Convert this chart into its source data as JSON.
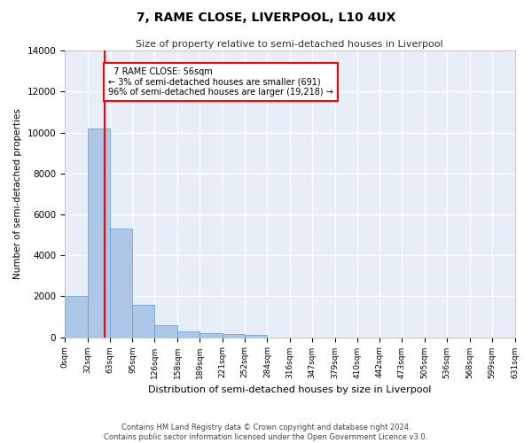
{
  "title": "7, RAME CLOSE, LIVERPOOL, L10 4UX",
  "subtitle": "Size of property relative to semi-detached houses in Liverpool",
  "xlabel": "Distribution of semi-detached houses by size in Liverpool",
  "ylabel": "Number of semi-detached properties",
  "footer_line1": "Contains HM Land Registry data © Crown copyright and database right 2024.",
  "footer_line2": "Contains public sector information licensed under the Open Government Licence v3.0.",
  "property_size": 56,
  "property_label": "7 RAME CLOSE: 56sqm",
  "pct_smaller": 3,
  "count_smaller": 691,
  "pct_larger": 96,
  "count_larger": 19218,
  "bar_color": "#aec6e8",
  "bar_edge_color": "#5b9bd5",
  "highlight_line_color": "red",
  "background_color": "#e8eef8",
  "grid_color": "#ffffff",
  "bins": [
    0,
    32,
    63,
    95,
    126,
    158,
    189,
    221,
    252,
    284,
    316,
    347,
    379,
    410,
    442,
    473,
    505,
    536,
    568,
    599,
    631
  ],
  "bin_labels": [
    "0sqm",
    "32sqm",
    "63sqm",
    "95sqm",
    "126sqm",
    "158sqm",
    "189sqm",
    "221sqm",
    "252sqm",
    "284sqm",
    "316sqm",
    "347sqm",
    "379sqm",
    "410sqm",
    "442sqm",
    "473sqm",
    "505sqm",
    "536sqm",
    "568sqm",
    "599sqm",
    "631sqm"
  ],
  "counts": [
    2000,
    10200,
    5300,
    1600,
    600,
    280,
    180,
    160,
    130,
    0,
    0,
    0,
    0,
    0,
    0,
    0,
    0,
    0,
    0,
    0
  ],
  "ylim": [
    0,
    14000
  ],
  "yticks": [
    0,
    2000,
    4000,
    6000,
    8000,
    10000,
    12000,
    14000
  ]
}
